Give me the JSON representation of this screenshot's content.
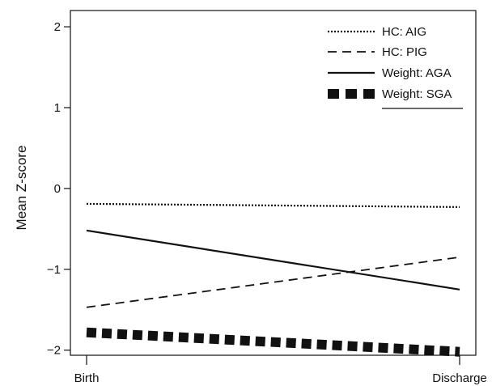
{
  "chart_data": {
    "type": "line",
    "title": "",
    "xlabel": "",
    "ylabel": "Mean Z-score",
    "categories": [
      "Birth",
      "Discharge"
    ],
    "ylim": [
      -2.15,
      2.15
    ],
    "yticks": [
      -2,
      -1,
      0,
      1,
      2
    ],
    "ytick_labels": [
      "−2",
      "−1",
      "0",
      "1",
      "2"
    ],
    "grid": false,
    "legend_position": "top-right",
    "series": [
      {
        "name": "HC: AIG",
        "values": [
          -0.19,
          -0.23
        ],
        "style": "dotted"
      },
      {
        "name": "HC: PIG",
        "values": [
          -1.47,
          -0.85
        ],
        "style": "dashed"
      },
      {
        "name": "Weight: AGA",
        "values": [
          -0.52,
          -1.25
        ],
        "style": "solid"
      },
      {
        "name": "Weight: SGA",
        "values": [
          -1.78,
          -2.02
        ],
        "style": "thick-dashed"
      }
    ]
  }
}
